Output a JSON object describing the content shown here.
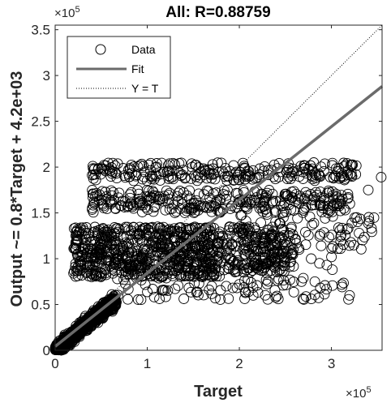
{
  "chart_data": {
    "type": "scatter",
    "title": "All: R=0.88759",
    "xlabel": "Target",
    "ylabel": "Output ~= 0.8*Target + 4.2e+03",
    "x_exponent_label": "×10",
    "x_exponent_power": "5",
    "y_exponent_label": "×10",
    "y_exponent_power": "5",
    "xlim": [
      0,
      355000
    ],
    "ylim": [
      0,
      355000
    ],
    "xticks": [
      0,
      100000,
      200000,
      300000
    ],
    "xtick_labels": [
      "0",
      "1",
      "2",
      "3"
    ],
    "yticks": [
      0,
      50000,
      100000,
      150000,
      200000,
      250000,
      300000,
      350000
    ],
    "ytick_labels": [
      "0",
      "0.5",
      "1",
      "1.5",
      "2",
      "2.5",
      "3",
      "3.5"
    ],
    "grid": false,
    "legend_position": "top-left",
    "legend": [
      {
        "label": "Data",
        "marker": "circle"
      },
      {
        "label": "Fit",
        "marker": "line"
      },
      {
        "label": "Y = T",
        "marker": "dotted-line"
      }
    ],
    "fit": {
      "slope": 0.8,
      "intercept": 4200,
      "color": "#6b6b6b"
    },
    "identity": {
      "slope": 1,
      "intercept": 0,
      "color": "#000000"
    },
    "series": [
      {
        "name": "Data",
        "clusters": [
          {
            "x": [
              0,
              65000
            ],
            "y": [
              0,
              55000
            ],
            "n": 900,
            "shape": "diagonal"
          },
          {
            "x": [
              20000,
              180000
            ],
            "y": [
              80000,
              135000
            ],
            "n": 700,
            "shape": "box"
          },
          {
            "x": [
              180000,
              260000
            ],
            "y": [
              85000,
              135000
            ],
            "n": 220,
            "shape": "box"
          },
          {
            "x": [
              40000,
              320000
            ],
            "y": [
              150000,
              175000
            ],
            "n": 300,
            "shape": "box"
          },
          {
            "x": [
              40000,
              330000
            ],
            "y": [
              185000,
              205000
            ],
            "n": 250,
            "shape": "box"
          },
          {
            "x": [
              60000,
              330000
            ],
            "y": [
              55000,
              80000
            ],
            "n": 90,
            "shape": "box"
          },
          {
            "x": [
              200000,
              350000
            ],
            "y": [
              110000,
              150000
            ],
            "n": 80,
            "shape": "box"
          }
        ],
        "points": [
          [
            354000,
            189000
          ],
          [
            340000,
            175000
          ],
          [
            320000,
            160000
          ],
          [
            317000,
            132000
          ],
          [
            310000,
            124000
          ],
          [
            307000,
            111000
          ],
          [
            300000,
            102000
          ],
          [
            295000,
            93000
          ],
          [
            287000,
            95000
          ],
          [
            278000,
            100000
          ],
          [
            265000,
            110000
          ],
          [
            255000,
            119000
          ],
          [
            330000,
            128000
          ],
          [
            301000,
            88000
          ],
          [
            282000,
            75000
          ],
          [
            240000,
            98000
          ],
          [
            215000,
            92000
          ],
          [
            198000,
            96000
          ],
          [
            185000,
            101000
          ],
          [
            168000,
            90000
          ],
          [
            200000,
            72000
          ],
          [
            230000,
            84000
          ],
          [
            160000,
            80000
          ],
          [
            120000,
            87000
          ],
          [
            80000,
            93000
          ],
          [
            45000,
            102000
          ],
          [
            30000,
            110000
          ],
          [
            60000,
            92000
          ]
        ]
      }
    ]
  }
}
